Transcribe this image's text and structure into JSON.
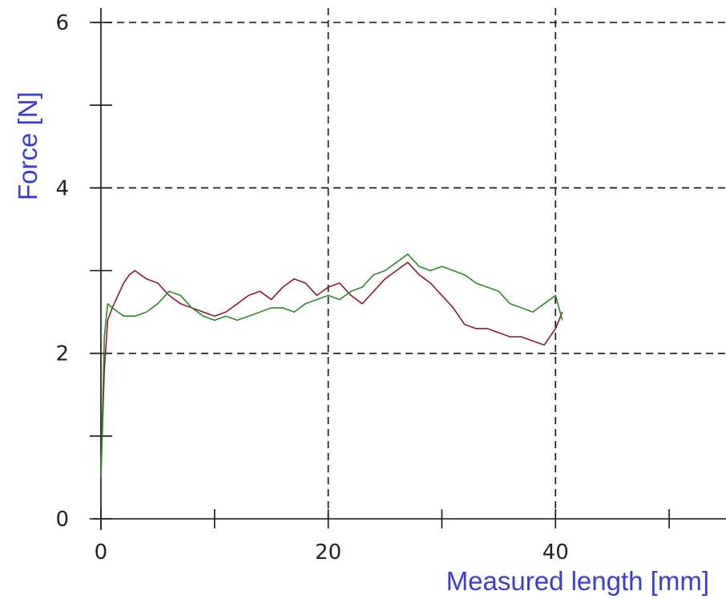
{
  "chart_data": {
    "type": "line",
    "title": "",
    "xlabel": "Measured length [mm]",
    "ylabel": "Force [N]",
    "xlim": [
      -0.7,
      55
    ],
    "ylim": [
      0,
      6
    ],
    "x_major_ticks": [
      0,
      20,
      40
    ],
    "x_major_tick_labels": [
      "0",
      "20",
      "40"
    ],
    "x_minor_ticks": [
      10,
      30,
      50
    ],
    "y_major_ticks": [
      0,
      2,
      4,
      6
    ],
    "y_major_tick_labels": [
      "0",
      "2",
      "4",
      "6"
    ],
    "y_minor_ticks": [
      1,
      3,
      5
    ],
    "grid": "dashed, at major ticks (x = 20, 40; y = 2, 4, 6)",
    "legend": "none",
    "series": [
      {
        "color": "#8b1a2b",
        "x": [
          0,
          0.3,
          0.6,
          1,
          1.5,
          2,
          2.5,
          3,
          3.5,
          4,
          5,
          6,
          7,
          8,
          9,
          10,
          11,
          12,
          13,
          14,
          15,
          16,
          17,
          18,
          19,
          20,
          21,
          22,
          23,
          24,
          25,
          26,
          27,
          28,
          29,
          30,
          31,
          32,
          33,
          34,
          35,
          36,
          37,
          38,
          39,
          40,
          40.6
        ],
        "y": [
          0.5,
          1.8,
          2.4,
          2.55,
          2.7,
          2.85,
          2.95,
          3.0,
          2.95,
          2.9,
          2.85,
          2.7,
          2.6,
          2.55,
          2.5,
          2.45,
          2.5,
          2.6,
          2.7,
          2.75,
          2.65,
          2.8,
          2.9,
          2.85,
          2.7,
          2.8,
          2.85,
          2.7,
          2.6,
          2.75,
          2.9,
          3.0,
          3.1,
          2.95,
          2.85,
          2.7,
          2.55,
          2.35,
          2.3,
          2.3,
          2.25,
          2.2,
          2.2,
          2.15,
          2.1,
          2.3,
          2.5
        ]
      },
      {
        "color": "#2a8a2a",
        "x": [
          0,
          0.3,
          0.6,
          1,
          1.5,
          2,
          3,
          4,
          5,
          6,
          7,
          8,
          9,
          10,
          11,
          12,
          13,
          14,
          15,
          16,
          17,
          18,
          19,
          20,
          21,
          22,
          23,
          24,
          25,
          26,
          27,
          28,
          29,
          30,
          31,
          32,
          33,
          34,
          35,
          36,
          37,
          38,
          39,
          40,
          40.6
        ],
        "y": [
          0.5,
          2.2,
          2.6,
          2.55,
          2.5,
          2.45,
          2.45,
          2.5,
          2.6,
          2.75,
          2.7,
          2.55,
          2.45,
          2.4,
          2.45,
          2.4,
          2.45,
          2.5,
          2.55,
          2.55,
          2.5,
          2.6,
          2.65,
          2.7,
          2.65,
          2.75,
          2.8,
          2.95,
          3.0,
          3.1,
          3.2,
          3.05,
          3.0,
          3.05,
          3.0,
          2.95,
          2.85,
          2.8,
          2.75,
          2.6,
          2.55,
          2.5,
          2.6,
          2.7,
          2.4
        ]
      }
    ]
  }
}
